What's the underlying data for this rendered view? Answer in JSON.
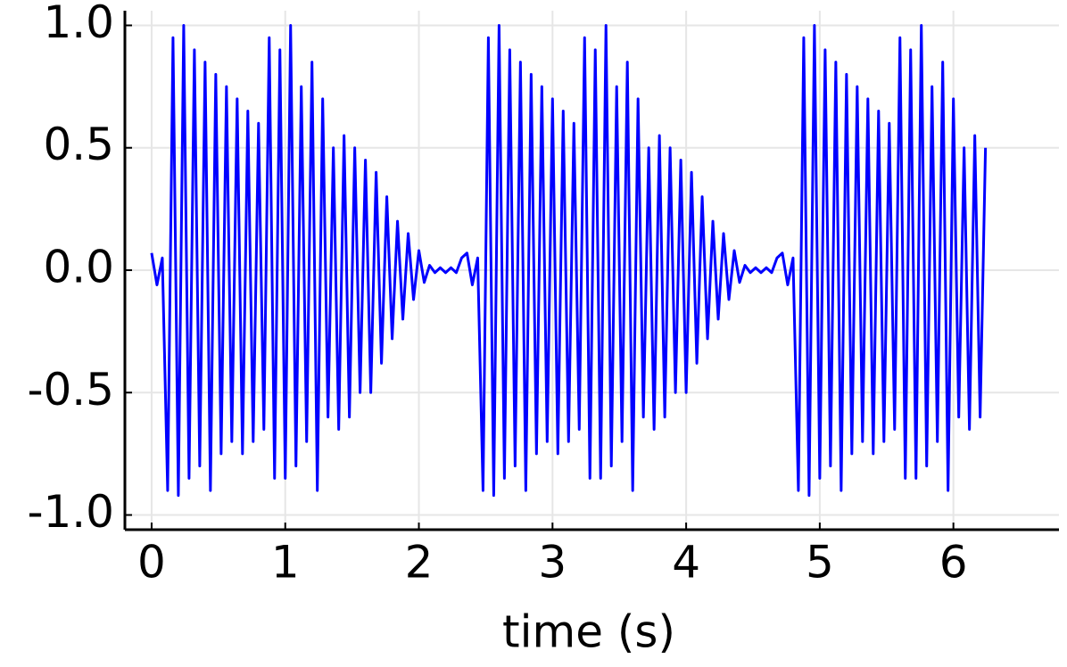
{
  "chart_data": {
    "type": "line",
    "xlabel": "time (s)",
    "x": [
      0,
      0.04,
      0.08,
      0.12,
      0.16,
      0.2,
      0.24,
      0.28,
      0.32,
      0.36,
      0.4,
      0.44,
      0.48,
      0.52,
      0.56,
      0.6,
      0.64,
      0.68,
      0.72,
      0.76,
      0.8,
      0.84,
      0.88,
      0.92,
      0.96,
      1,
      1.04,
      1.08,
      1.12,
      1.16,
      1.2,
      1.24,
      1.28,
      1.32,
      1.36,
      1.4,
      1.44,
      1.48,
      1.52,
      1.56,
      1.6,
      1.64,
      1.68,
      1.72,
      1.76,
      1.8,
      1.84,
      1.88,
      1.92,
      1.96,
      2,
      2.04,
      2.08,
      2.12,
      2.16,
      2.2,
      2.24,
      2.28,
      2.32,
      2.36,
      2.4,
      2.44,
      2.48,
      2.52,
      2.56,
      2.6,
      2.64,
      2.68,
      2.72,
      2.76,
      2.8,
      2.84,
      2.88,
      2.92,
      2.96,
      3,
      3.04,
      3.08,
      3.12,
      3.16,
      3.2,
      3.24,
      3.28,
      3.32,
      3.36,
      3.4,
      3.44,
      3.48,
      3.52,
      3.56,
      3.6,
      3.64,
      3.68,
      3.72,
      3.76,
      3.8,
      3.84,
      3.88,
      3.92,
      3.96,
      4,
      4.04,
      4.08,
      4.12,
      4.16,
      4.2,
      4.24,
      4.28,
      4.32,
      4.36,
      4.4,
      4.44,
      4.48,
      4.52,
      4.56,
      4.6,
      4.64,
      4.68,
      4.72,
      4.76,
      4.8,
      4.84,
      4.88,
      4.92,
      4.96,
      5,
      5.04,
      5.08,
      5.12,
      5.16,
      5.2,
      5.24,
      5.28,
      5.32,
      5.36,
      5.4,
      5.44,
      5.48,
      5.52,
      5.56,
      5.6,
      5.64,
      5.68,
      5.72,
      5.76,
      5.8,
      5.84,
      5.88,
      5.92,
      5.96,
      6,
      6.04,
      6.08,
      6.12,
      6.16,
      6.2,
      6.24
    ],
    "series": [
      {
        "color": "#0000ff",
        "values": [
          0.07,
          -0.06,
          0.05,
          -0.9,
          0.95,
          -0.92,
          1.0,
          -0.85,
          0.9,
          -0.8,
          0.85,
          -0.9,
          0.8,
          -0.75,
          0.75,
          -0.7,
          0.7,
          -0.75,
          0.65,
          -0.7,
          0.6,
          -0.65,
          0.95,
          -0.85,
          0.9,
          -0.85,
          1.0,
          -0.8,
          0.75,
          -0.7,
          0.85,
          -0.9,
          0.7,
          -0.6,
          0.5,
          -0.65,
          0.55,
          -0.6,
          0.5,
          -0.5,
          0.45,
          -0.5,
          0.4,
          -0.38,
          0.3,
          -0.28,
          0.2,
          -0.2,
          0.15,
          -0.12,
          0.08,
          -0.05,
          0.02,
          -0.01,
          0.01,
          -0.01,
          0.01,
          -0.01,
          0.05,
          0.07,
          -0.06,
          0.05,
          -0.9,
          0.95,
          -0.92,
          1.0,
          -0.85,
          0.9,
          -0.8,
          0.85,
          -0.9,
          0.8,
          -0.75,
          0.75,
          -0.7,
          0.7,
          -0.75,
          0.65,
          -0.7,
          0.6,
          -0.65,
          0.95,
          -0.85,
          0.9,
          -0.85,
          1.0,
          -0.8,
          0.75,
          -0.7,
          0.85,
          -0.9,
          0.7,
          -0.6,
          0.5,
          -0.65,
          0.55,
          -0.6,
          0.5,
          -0.5,
          0.45,
          -0.5,
          0.4,
          -0.38,
          0.3,
          -0.28,
          0.2,
          -0.2,
          0.15,
          -0.12,
          0.08,
          -0.05,
          0.02,
          -0.01,
          0.01,
          -0.01,
          0.01,
          -0.01,
          0.05,
          0.07,
          -0.06,
          0.05,
          -0.9,
          0.95,
          -0.92,
          1.0,
          -0.85,
          0.9,
          -0.8,
          0.85,
          -0.9,
          0.8,
          -0.75,
          0.75,
          -0.7,
          0.7,
          -0.75,
          0.65,
          -0.7,
          0.6,
          -0.65,
          0.95,
          -0.85,
          0.9,
          -0.85,
          1.0,
          -0.8,
          0.75,
          -0.7,
          0.85,
          -0.9,
          0.7,
          -0.6,
          0.5,
          -0.65,
          0.55,
          -0.6,
          0.5
        ]
      }
    ],
    "xlim": [
      -0.2,
      6.79
    ],
    "xticks": [
      0,
      1,
      2,
      3,
      4,
      5,
      6
    ],
    "ylim": [
      -1.06,
      1.06
    ],
    "yticks": [
      {
        "value": -1,
        "label": "-1.0"
      },
      {
        "value": -0.5,
        "label": "-0.5"
      },
      {
        "value": 0,
        "label": "0.0"
      },
      {
        "value": 0.5,
        "label": "0.5"
      },
      {
        "value": 1,
        "label": "1.0"
      }
    ],
    "grid": true
  }
}
